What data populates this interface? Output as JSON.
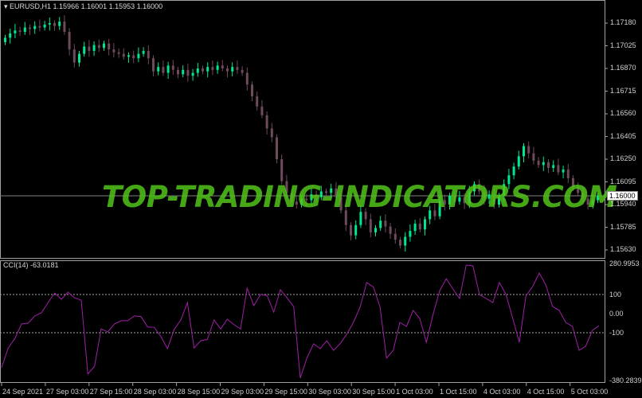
{
  "window": {
    "symbol_line": "EURUSD,H1  1.15966 1.16001 1.15953 1.16000"
  },
  "watermark": "TOP-TRADING-INDICATORS.COM",
  "colors": {
    "bull": "#00e88f",
    "bear": "#6e4a5c",
    "cci_line": "#a020a8",
    "grid_level": "#a0a0a0",
    "bid_line": "#808080",
    "frame": "#a0a0a0"
  },
  "price_axis": {
    "labels": [
      "1.17180",
      "1.17025",
      "1.16870",
      "1.16715",
      "1.16560",
      "1.16405",
      "1.16250",
      "1.16095",
      "1.15940",
      "1.15785",
      "1.15630"
    ],
    "bid": "1.16000"
  },
  "indicator": {
    "title": "CCI(14) -63.0181",
    "max": "280.9953",
    "min": "-380.2839",
    "levels": [
      "100",
      "0.00",
      "-100"
    ]
  },
  "time_axis": [
    "24 Sep 2021",
    "27 Sep 03:00",
    "27 Sep 15:00",
    "28 Sep 03:00",
    "28 Sep 15:00",
    "29 Sep 03:00",
    "29 Sep 15:00",
    "30 Sep 03:00",
    "30 Sep 15:00",
    "1 Oct 03:00",
    "1 Oct 15:00",
    "4 Oct 03:00",
    "4 Oct 15:00",
    "5 Oct 03:00"
  ],
  "chart_data": [
    {
      "type": "candlestick",
      "series": "EURUSD,H1",
      "ylim": [
        1.1555,
        1.1736
      ],
      "close": [
        1.1708,
        1.1711,
        1.1713,
        1.1712,
        1.1715,
        1.1714,
        1.1716,
        1.1715,
        1.1717,
        1.1718,
        1.1716,
        1.1719,
        1.1712,
        1.17,
        1.1691,
        1.1697,
        1.1702,
        1.1699,
        1.1703,
        1.1701,
        1.1704,
        1.17,
        1.1698,
        1.1697,
        1.1695,
        1.1696,
        1.1694,
        1.1697,
        1.1699,
        1.1694,
        1.1685,
        1.1688,
        1.1684,
        1.1689,
        1.1686,
        1.1683,
        1.1686,
        1.1682,
        1.1684,
        1.1687,
        1.1685,
        1.1688,
        1.1686,
        1.1689,
        1.1687,
        1.1685,
        1.1688,
        1.1686,
        1.1684,
        1.1676,
        1.1668,
        1.1661,
        1.1655,
        1.1646,
        1.164,
        1.1625,
        1.161,
        1.1602,
        1.1596,
        1.1594,
        1.1598,
        1.1597,
        1.1601,
        1.1599,
        1.1603,
        1.1602,
        1.1605,
        1.1599,
        1.159,
        1.158,
        1.1573,
        1.158,
        1.1589,
        1.1584,
        1.1575,
        1.1578,
        1.1583,
        1.1579,
        1.1574,
        1.157,
        1.1566,
        1.1572,
        1.1576,
        1.1581,
        1.1577,
        1.1584,
        1.159,
        1.1586,
        1.1597,
        1.1594,
        1.16,
        1.1596,
        1.1599,
        1.1595,
        1.1603,
        1.1608,
        1.1603,
        1.1598,
        1.1601,
        1.1594,
        1.16,
        1.1608,
        1.1614,
        1.162,
        1.1627,
        1.1634,
        1.1629,
        1.1624,
        1.1621,
        1.1623,
        1.1619,
        1.1621,
        1.1616,
        1.1618,
        1.1612,
        1.1606,
        1.1602,
        1.1598,
        1.1594,
        1.1597,
        1.16
      ]
    },
    {
      "type": "line",
      "series": "CCI(14)",
      "ylim": [
        -380.2839,
        280.9953
      ],
      "levels": [
        100,
        -100
      ],
      "values": [
        -283,
        -180,
        -130,
        -54,
        -50,
        -12,
        4,
        58,
        108,
        75,
        112,
        83,
        70,
        -316,
        -275,
        -80,
        -96,
        -54,
        -37,
        -37,
        -12,
        -15,
        -70,
        -72,
        -120,
        -183,
        -83,
        -33,
        58,
        -180,
        -142,
        -135,
        -33,
        -80,
        -29,
        -58,
        -80,
        133,
        42,
        100,
        95,
        8,
        125,
        83,
        37,
        -337,
        -233,
        -158,
        -183,
        -142,
        -192,
        -158,
        -108,
        -46,
        33,
        163,
        140,
        37,
        -233,
        -192,
        -46,
        -67,
        17,
        -25,
        -150,
        -4,
        120,
        183,
        129,
        79,
        254,
        250,
        100,
        79,
        58,
        163,
        100,
        -25,
        -150,
        92,
        142,
        212,
        150,
        37,
        17,
        -46,
        -67,
        -192,
        -171,
        -88,
        -63
      ]
    }
  ]
}
